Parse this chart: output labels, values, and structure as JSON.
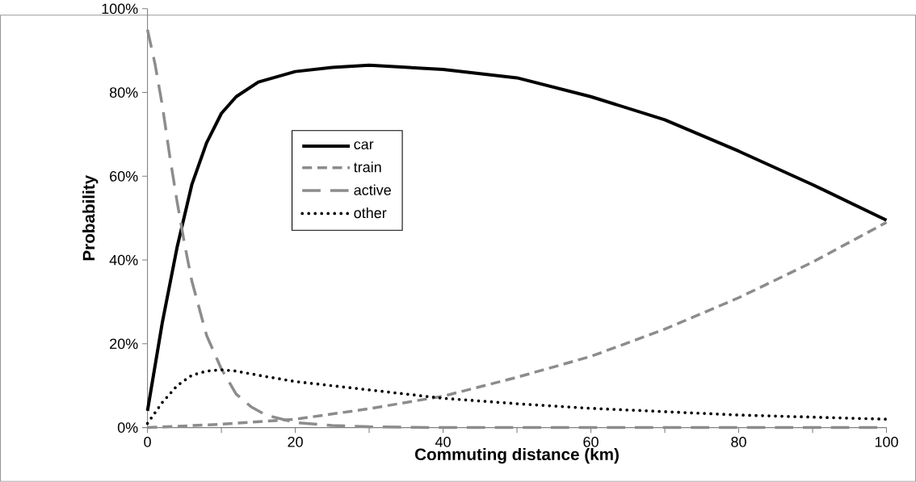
{
  "chart_data": {
    "type": "line",
    "xlabel": "Commuting distance (km)",
    "ylabel": "Probability",
    "xlim": [
      0,
      100
    ],
    "xticks": [
      0,
      20,
      40,
      60,
      80,
      100
    ],
    "ylim": [
      0,
      100
    ],
    "yticks": [
      {
        "value": 0,
        "label": "0%"
      },
      {
        "value": 20,
        "label": "20%"
      },
      {
        "value": 40,
        "label": "40%"
      },
      {
        "value": 60,
        "label": "60%"
      },
      {
        "value": 80,
        "label": "80%"
      },
      {
        "value": 100,
        "label": "100%"
      }
    ],
    "grid": false,
    "legend": "center left",
    "marker": "none",
    "series": [
      {
        "name": "car",
        "color": "#000000",
        "line_style": "solid",
        "x": [
          0,
          2,
          4,
          6,
          8,
          10,
          12,
          15,
          20,
          25,
          30,
          40,
          50,
          60,
          70,
          80,
          90,
          100
        ],
        "values": [
          4,
          25,
          43,
          58,
          68,
          75,
          79,
          82.5,
          85,
          86,
          86.5,
          85.5,
          83.5,
          79,
          73.5,
          66,
          58,
          49.5
        ]
      },
      {
        "name": "train",
        "color": "#8c8c8c",
        "line_style": "dashed",
        "x": [
          0,
          10,
          20,
          30,
          40,
          50,
          60,
          70,
          80,
          90,
          100
        ],
        "values": [
          0,
          0.8,
          2,
          4.5,
          7.5,
          12,
          17,
          23.5,
          31,
          39.5,
          49
        ]
      },
      {
        "name": "active",
        "color": "#8c8c8c",
        "line_style": "longdashed",
        "x": [
          0,
          1,
          2,
          3,
          4,
          5,
          6,
          8,
          10,
          12,
          14,
          16,
          20,
          25,
          30,
          40,
          100
        ],
        "values": [
          95,
          87,
          77,
          65,
          54,
          44,
          35,
          22,
          14,
          8,
          5,
          3,
          1.2,
          0.5,
          0.2,
          0,
          0
        ]
      },
      {
        "name": "other",
        "color": "#000000",
        "line_style": "dotted",
        "x": [
          0,
          2,
          4,
          6,
          8,
          10,
          12,
          15,
          20,
          30,
          40,
          50,
          60,
          70,
          80,
          90,
          100
        ],
        "values": [
          1,
          6,
          10,
          12.5,
          13.5,
          13.8,
          13.5,
          12.5,
          11,
          9,
          7,
          5.7,
          4.6,
          3.8,
          3,
          2.5,
          2
        ]
      }
    ]
  }
}
